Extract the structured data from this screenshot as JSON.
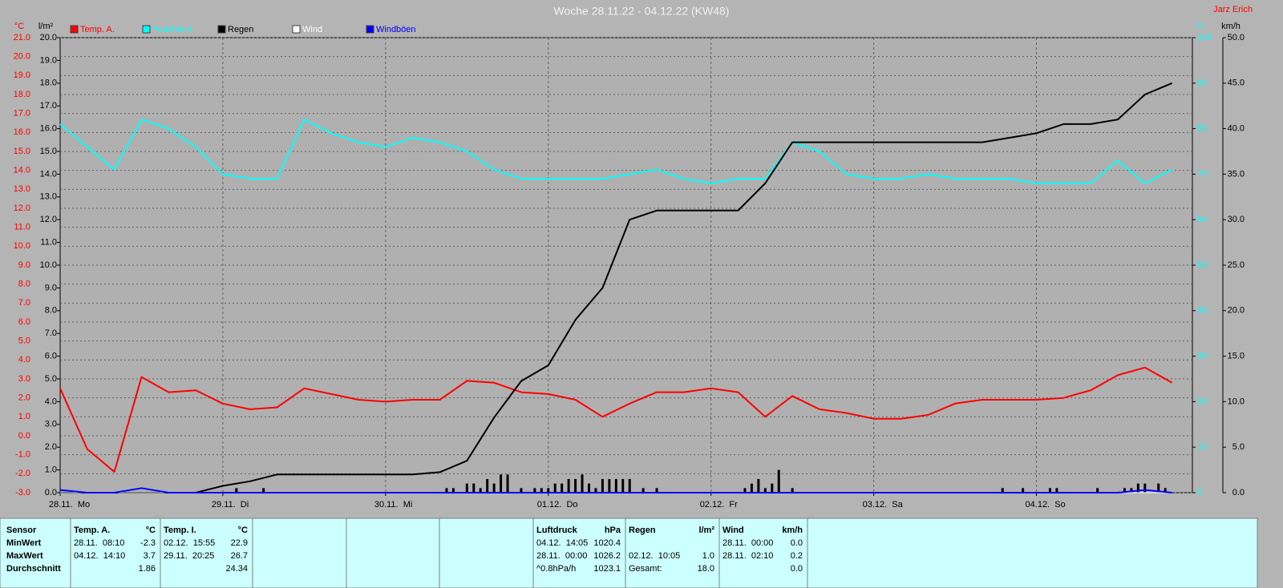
{
  "chart_data": {
    "type": "line",
    "title": "Woche 28.11.22 - 04.12.22 (KW48)",
    "author": "Jarz Erich",
    "ylabel": "°C",
    "y2label": "l/m²",
    "y3label": "%",
    "y4label": "km/h",
    "axis_colors": {
      "y": "#ff0000",
      "y2": "#000000",
      "y3": "#00ffff",
      "y4": "#000000"
    },
    "grid": true,
    "xlim": [
      0,
      167
    ],
    "xticks": [
      {
        "value": 0,
        "label": "28.11.  Mo"
      },
      {
        "value": 24,
        "label": "29.11.  Di"
      },
      {
        "value": 48,
        "label": "30.11.  Mi"
      },
      {
        "value": 72,
        "label": "01.12.  Do"
      },
      {
        "value": 96,
        "label": "02.12.  Fr"
      },
      {
        "value": 120,
        "label": "03.12.  Sa"
      },
      {
        "value": 144,
        "label": "04.12.  So"
      }
    ],
    "ylim": [
      -3,
      21
    ],
    "yticks": [
      {
        "value": -3,
        "label": "-3.0"
      },
      {
        "value": -2,
        "label": "-2.0"
      },
      {
        "value": -1,
        "label": "-1.0"
      },
      {
        "value": 0,
        "label": "0.0"
      },
      {
        "value": 1,
        "label": "1.0"
      },
      {
        "value": 2,
        "label": "2.0"
      },
      {
        "value": 3,
        "label": "3.0"
      },
      {
        "value": 4,
        "label": "4.0"
      },
      {
        "value": 5,
        "label": "5.0"
      },
      {
        "value": 6,
        "label": "6.0"
      },
      {
        "value": 7,
        "label": "7.0"
      },
      {
        "value": 8,
        "label": "8.0"
      },
      {
        "value": 9,
        "label": "9.0"
      },
      {
        "value": 10,
        "label": "10.0"
      },
      {
        "value": 11,
        "label": "11.0"
      },
      {
        "value": 12,
        "label": "12.0"
      },
      {
        "value": 13,
        "label": "13.0"
      },
      {
        "value": 14,
        "label": "14.0"
      },
      {
        "value": 15,
        "label": "15.0"
      },
      {
        "value": 16,
        "label": "16.0"
      },
      {
        "value": 17,
        "label": "17.0"
      },
      {
        "value": 18,
        "label": "18.0"
      },
      {
        "value": 19,
        "label": "19.0"
      },
      {
        "value": 20,
        "label": "20.0"
      },
      {
        "value": 21,
        "label": "21.0"
      }
    ],
    "y2lim": [
      0,
      20
    ],
    "y2ticks": [
      {
        "value": 0,
        "label": "0.0"
      },
      {
        "value": 1,
        "label": "1.0"
      },
      {
        "value": 2,
        "label": "2.0"
      },
      {
        "value": 3,
        "label": "3.0"
      },
      {
        "value": 4,
        "label": "4.0"
      },
      {
        "value": 5,
        "label": "5.0"
      },
      {
        "value": 6,
        "label": "6.0"
      },
      {
        "value": 7,
        "label": "7.0"
      },
      {
        "value": 8,
        "label": "8.0"
      },
      {
        "value": 9,
        "label": "9.0"
      },
      {
        "value": 10,
        "label": "10.0"
      },
      {
        "value": 11,
        "label": "11.0"
      },
      {
        "value": 12,
        "label": "12.0"
      },
      {
        "value": 13,
        "label": "13.0"
      },
      {
        "value": 14,
        "label": "14.0"
      },
      {
        "value": 15,
        "label": "15.0"
      },
      {
        "value": 16,
        "label": "16.0"
      },
      {
        "value": 17,
        "label": "17.0"
      },
      {
        "value": 18,
        "label": "18.0"
      },
      {
        "value": 19,
        "label": "19.0"
      },
      {
        "value": 20,
        "label": "20.0"
      }
    ],
    "y3lim": [
      0,
      100
    ],
    "y3ticks": [
      0,
      10,
      20,
      30,
      40,
      50,
      60,
      70,
      80,
      90,
      100
    ],
    "y4lim": [
      0,
      50
    ],
    "y4ticks": [
      {
        "value": 0,
        "label": "0.0"
      },
      {
        "value": 5,
        "label": "5.0"
      },
      {
        "value": 10,
        "label": "10.0"
      },
      {
        "value": 15,
        "label": "15.0"
      },
      {
        "value": 20,
        "label": "20.0"
      },
      {
        "value": 25,
        "label": "25.0"
      },
      {
        "value": 30,
        "label": "30.0"
      },
      {
        "value": 35,
        "label": "35.0"
      },
      {
        "value": 40,
        "label": "40.0"
      },
      {
        "value": 45,
        "label": "45.0"
      },
      {
        "value": 50,
        "label": "50.0"
      }
    ],
    "x": [
      0,
      4,
      8,
      12,
      16,
      20,
      24,
      28,
      32,
      36,
      40,
      44,
      48,
      52,
      56,
      60,
      64,
      68,
      72,
      76,
      80,
      84,
      88,
      92,
      96,
      100,
      104,
      108,
      112,
      116,
      120,
      124,
      128,
      132,
      136,
      140,
      144,
      148,
      152,
      156,
      160,
      164
    ],
    "series": [
      {
        "name": "Temp. A.",
        "color": "#ff0000",
        "axis": "y",
        "values": [
          2.5,
          -0.7,
          -1.9,
          3.1,
          2.3,
          2.4,
          1.7,
          1.4,
          1.5,
          2.5,
          2.2,
          1.9,
          1.8,
          1.9,
          1.9,
          2.9,
          2.8,
          2.3,
          2.2,
          1.9,
          1.0,
          1.7,
          2.3,
          2.3,
          2.5,
          2.3,
          1.0,
          2.1,
          1.4,
          1.2,
          0.9,
          0.9,
          1.1,
          1.7,
          1.9,
          1.9,
          1.9,
          2.0,
          2.4,
          3.2,
          3.6,
          2.8
        ]
      },
      {
        "name": "Feuchte A.",
        "color": "#00ffff",
        "axis": "y3",
        "values": [
          81,
          76,
          71,
          82,
          80,
          76,
          70,
          69,
          69,
          82,
          79,
          77,
          76,
          78,
          77,
          75,
          71,
          69,
          69,
          69,
          69,
          70,
          71,
          69,
          68,
          69,
          69,
          77,
          75,
          70,
          69,
          69,
          70,
          69,
          69,
          69,
          68,
          68,
          68,
          73,
          68,
          71
        ]
      },
      {
        "name": "Regen",
        "color": "#000000",
        "axis": "y2",
        "values": [
          0,
          0,
          0,
          0,
          0,
          0,
          0.3,
          0.5,
          0.8,
          0.8,
          0.8,
          0.8,
          0.8,
          0.8,
          0.9,
          1.4,
          3.3,
          4.9,
          5.6,
          7.6,
          9.0,
          12.0,
          12.4,
          12.4,
          12.4,
          12.4,
          13.6,
          15.4,
          15.4,
          15.4,
          15.4,
          15.4,
          15.4,
          15.4,
          15.4,
          15.6,
          15.8,
          16.2,
          16.2,
          16.4,
          17.5,
          18.0
        ],
        "bar_x": [
          26,
          30,
          57,
          58,
          60,
          61,
          62,
          63,
          64,
          65,
          66,
          68,
          70,
          71,
          72,
          73,
          74,
          75,
          76,
          77,
          78,
          79,
          80,
          81,
          82,
          83,
          84,
          86,
          88,
          101,
          102,
          103,
          104,
          105,
          106,
          108,
          139,
          142,
          146,
          147,
          153,
          157,
          158,
          159,
          160,
          162,
          163
        ],
        "bar_values": [
          0.2,
          0.2,
          0.2,
          0.2,
          0.4,
          0.4,
          0.2,
          0.6,
          0.4,
          0.8,
          0.8,
          0.2,
          0.2,
          0.2,
          0.2,
          0.4,
          0.4,
          0.6,
          0.6,
          0.8,
          0.4,
          0.2,
          0.6,
          0.6,
          0.6,
          0.6,
          0.6,
          0.2,
          0.2,
          0.2,
          0.4,
          0.6,
          0.2,
          0.4,
          1.0,
          0.2,
          0.2,
          0.2,
          0.2,
          0.2,
          0.2,
          0.2,
          0.2,
          0.4,
          0.4,
          0.4,
          0.2
        ]
      },
      {
        "name": "Wind",
        "color": "#ffffff",
        "axis": "y4",
        "values": [
          0,
          0,
          0,
          0,
          0,
          0,
          0,
          0,
          0,
          0,
          0,
          0,
          0,
          0,
          0,
          0,
          0,
          0,
          0,
          0,
          0,
          0,
          0,
          0,
          0,
          0,
          0,
          0,
          0,
          0,
          0,
          0,
          0,
          0,
          0,
          0,
          0,
          0,
          0,
          0,
          0,
          0
        ]
      },
      {
        "name": "Windböen",
        "color": "#0000ff",
        "axis": "y4",
        "values": [
          0.3,
          0,
          0,
          0.5,
          0,
          0,
          0,
          0,
          0,
          0,
          0,
          0,
          0,
          0,
          0,
          0,
          0,
          0,
          0,
          0,
          0,
          0,
          0,
          0,
          0,
          0,
          0,
          0,
          0,
          0,
          0,
          0,
          0,
          0,
          0,
          0,
          0,
          0,
          0,
          0,
          0.3,
          0
        ]
      }
    ]
  },
  "summary": {
    "sensor": "Sensor",
    "groups": [
      {
        "name": "Temp. A.",
        "unit": "°C"
      },
      {
        "name": "Temp. I.",
        "unit": "°C"
      },
      {
        "name": "Luftdruck",
        "unit": "hPa"
      },
      {
        "name": "Regen",
        "unit": "l/m²"
      },
      {
        "name": "Wind",
        "unit": "km/h"
      }
    ],
    "rows": [
      {
        "label": "MinWert",
        "cells": [
          {
            "when": "28.11.  08:10",
            "value": "-2.3"
          },
          {
            "when": "02.12.  15:55",
            "value": "22.9"
          },
          {
            "when": "04.12.  14:05",
            "value": "1020.4"
          },
          null,
          {
            "when": "28.11.  00:00",
            "value": "0.0"
          }
        ]
      },
      {
        "label": "MaxWert",
        "cells": [
          {
            "when": "04.12.  14:10",
            "value": "3.7"
          },
          {
            "when": "29.11.  20:25",
            "value": "26.7"
          },
          {
            "when": "28.11.  00:00",
            "value": "1026.2"
          },
          {
            "when": "02.12.  10:05",
            "value": "1.0"
          },
          {
            "when": "28.11.  02:10",
            "value": "0.2"
          }
        ]
      },
      {
        "label": "Durchschnitt",
        "cells": [
          {
            "value": "1.86"
          },
          {
            "value": "24.34"
          },
          {
            "when": "^0.8hPa/h",
            "value": "1023.1"
          },
          {
            "when": "Gesamt:",
            "value": "18.0"
          },
          {
            "value": "0.0"
          }
        ]
      }
    ]
  }
}
